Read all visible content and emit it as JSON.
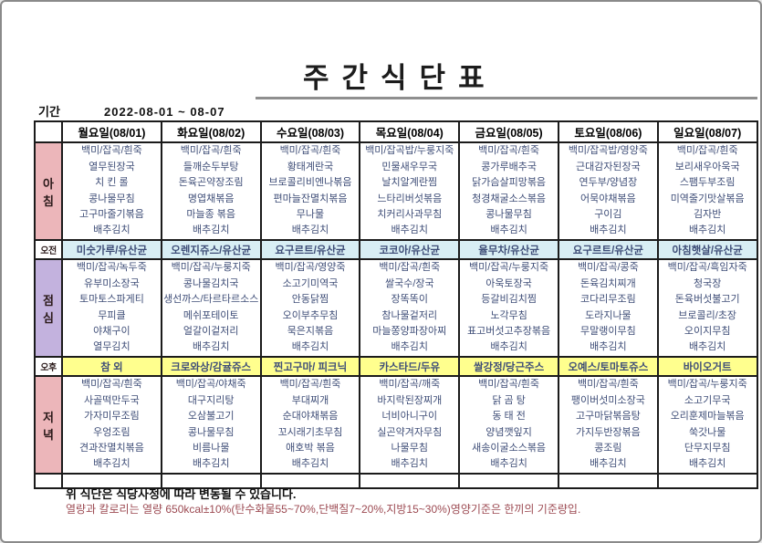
{
  "page": {
    "title": "주간식단표",
    "period_label": "기간",
    "period_value": "2022-08-01 ~ 08-07"
  },
  "colors": {
    "pink-bg": "#ecb6ba",
    "purple-bg": "#c3b2de",
    "am-bg": "#d8eef4",
    "pm-bg": "#ffff8e",
    "menu-text": "#3f4e78",
    "note2-color": "#9c4a52"
  },
  "table": {
    "days": [
      "월요일(08/01)",
      "화요일(08/02)",
      "수요일(08/03)",
      "목요일(08/04)",
      "금요일(08/05)",
      "토요일(08/06)",
      "일요일(08/07)"
    ],
    "rows": [
      {
        "key": "breakfast",
        "label": "아침",
        "type": "meal",
        "items": [
          [
            "백미/잡곡/흰죽",
            "열무된장국",
            "치 킨 롤",
            "콩나물무침",
            "고구마줄기볶음",
            "배추김치"
          ],
          [
            "백미/잡곡/흰죽",
            "들깨순두부탕",
            "돈육곤약장조림",
            "명엽채볶음",
            "마늘종 볶음",
            "배추김치"
          ],
          [
            "백미/잡곡/흰죽",
            "황태계란국",
            "브로콜리비엔나볶음",
            "편마늘잔멸치볶음",
            "무나물",
            "배추김치"
          ],
          [
            "백미/잡곡밥/누룽지죽",
            "민물새우무국",
            "날치알계란찜",
            "느타리버섯볶음",
            "치커리사과무침",
            "배추김치"
          ],
          [
            "백미/잡곡/흰죽",
            "콩가루배추국",
            "닭가슴살피망볶음",
            "청경채굴소스볶음",
            "콩나물무침",
            "배추김치"
          ],
          [
            "백미/잡곡밥/영양죽",
            "근대감자된장국",
            "연두부/양념장",
            "어묵야채볶음",
            "구이김",
            "배추김치"
          ],
          [
            "백미/잡곡/흰죽",
            "보리새우아욱국",
            "스팸두부조림",
            "미역줄기맛살볶음",
            "김자반",
            "배추김치"
          ]
        ]
      },
      {
        "key": "am_snack",
        "label": "오전",
        "type": "snack",
        "items": [
          "미숫가루/유산균",
          "오렌지쥬스/유산균",
          "요구르트/유산균",
          "코코아/유산균",
          "율무차/유산균",
          "요구르트/유산균",
          "아침햇살/유산균"
        ]
      },
      {
        "key": "lunch",
        "label": "점심",
        "type": "meal",
        "items": [
          [
            "백미/잡곡/녹두죽",
            "유부미소장국",
            "토마토스파게티",
            "무피클",
            "야채구이",
            "열무김치"
          ],
          [
            "백미/잡곡/누룽지죽",
            "콩나물김치국",
            "생선까스/타르타르소스",
            "메쉬포테이토",
            "얼갈이겉저리",
            "배추김치"
          ],
          [
            "백미/잡곡/영양죽",
            "소고기미역국",
            "안동닭찜",
            "오이부추무침",
            "묵은지볶음",
            "배추김치"
          ],
          [
            "백미/잡곡/흰죽",
            "쌀국수/장국",
            "장똑똑이",
            "참나물겉저리",
            "마늘쫑양파장아찌",
            "배추김치"
          ],
          [
            "백미/잡곡/누룽지죽",
            "아욱토장국",
            "등갈비김치찜",
            "노각무침",
            "표고버섯고추장볶음",
            "배추김치"
          ],
          [
            "백미/잡곡/콩죽",
            "돈육김치찌개",
            "코다리무조림",
            "도라지나물",
            "무말랭이무침",
            "배추김치"
          ],
          [
            "백미/잡곡/흑임자죽",
            "청국장",
            "돈육버섯불고기",
            "브로콜리/초장",
            "오이지무침",
            "배추김치"
          ]
        ]
      },
      {
        "key": "pm_snack",
        "label": "오후",
        "type": "snack",
        "items": [
          "참  외",
          "크로와상/감귤쥬스",
          "찐고구마/ 피크닉",
          "카스타드/두유",
          "쌀강정/당근주스",
          "오예스/토마토쥬스",
          "바이오거트"
        ]
      },
      {
        "key": "dinner",
        "label": "저녁",
        "type": "meal",
        "items": [
          [
            "백미/잡곡/흰죽",
            "사골떡만두국",
            "가자미무조림",
            "우엉조림",
            "견과잔멸치볶음",
            "배추김치"
          ],
          [
            "백미/잡곡/야채죽",
            "대구지리탕",
            "오삼불고기",
            "콩나물무침",
            "비름나물",
            "배추김치"
          ],
          [
            "백미/잡곡/흰죽",
            "부대찌개",
            "순대야채볶음",
            "꼬시래기초무침",
            "애호박 볶음",
            "배추김치"
          ],
          [
            "백미/잡곡/깨죽",
            "바지락된장찌개",
            "너비아니구이",
            "실곤약겨자무침",
            "나물무침",
            "배추김치"
          ],
          [
            "백미/잡곡/흰죽",
            "닭 곰 탕",
            "동 태 전",
            "양념깻잎지",
            "새송이굴소스볶음",
            "배추김치"
          ],
          [
            "백미/잡곡/흰죽",
            "팽이버섯미소장국",
            "고구마닭볶음탕",
            "가지두반장볶음",
            "콩조림",
            "배추김치"
          ],
          [
            "백미/잡곡/누룽지죽",
            "소고기무국",
            "오리훈제마늘볶음",
            "쑥갓나물",
            "단무지무침",
            "배추김치"
          ]
        ]
      }
    ]
  },
  "footer": {
    "note1": "위 식단은 식당사정에 따라 변동될 수 있습니다.",
    "note2": "열량과 칼로리는 열량 650kcal±10%(탄수화물55~70%,단백질7~20%,지방15~30%)영양기준은 한끼의 기준량입."
  }
}
